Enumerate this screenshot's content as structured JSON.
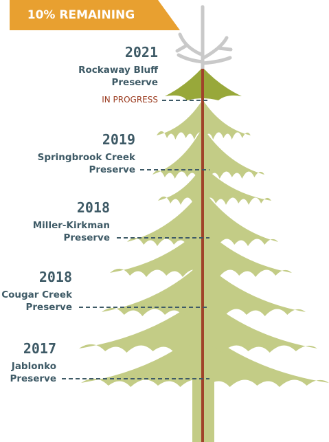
{
  "banner": {
    "text": "10% REMAINING"
  },
  "milestones": [
    {
      "year": "2021",
      "name": [
        "Rockaway Bluff",
        "Preserve"
      ],
      "status": "IN PROGRESS"
    },
    {
      "year": "2019",
      "name": [
        "Springbrook Creek",
        "Preserve"
      ]
    },
    {
      "year": "2018",
      "name": [
        "Miller-Kirkman",
        "Preserve"
      ]
    },
    {
      "year": "2018",
      "name": [
        "Cougar Creek",
        "Preserve"
      ]
    },
    {
      "year": "2017",
      "name": [
        "Jablonko",
        "Preserve"
      ]
    }
  ]
}
